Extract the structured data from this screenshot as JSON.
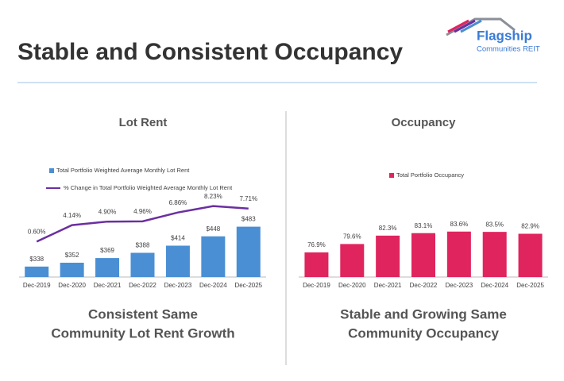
{
  "slide": {
    "title": "Stable and Consistent Occupancy",
    "logo": {
      "name": "Flagship",
      "subtitle": "Communities REIT"
    }
  },
  "chart_data": [
    {
      "type": "combo",
      "title": "Lot Rent",
      "categories": [
        "Dec-2019",
        "Dec-2020",
        "Dec-2021",
        "Dec-2022",
        "Dec-2023",
        "Dec-2024",
        "Dec-2025"
      ],
      "series": [
        {
          "name": "Total Portfolio Weighted Average Monthly Lot Rent",
          "type": "bar",
          "color": "#4a8fd4",
          "values": [
            338,
            352,
            369,
            388,
            414,
            448,
            483
          ],
          "value_labels": [
            "$338",
            "$352",
            "$369",
            "$388",
            "$414",
            "$448",
            "$483"
          ]
        },
        {
          "name": "% Change in Total Portfolio Weighted Average Monthly Lot Rent",
          "type": "line",
          "color": "#6b2fa0",
          "axis": "y2",
          "values": [
            0.6,
            4.14,
            4.9,
            4.96,
            6.86,
            8.23,
            7.71
          ],
          "value_labels": [
            "0.60%",
            "4.14%",
            "4.90%",
            "4.96%",
            "6.86%",
            "8.23%",
            "7.71%"
          ]
        }
      ],
      "ylim": [
        300,
        730
      ],
      "y2lim": [
        -7,
        18.4
      ],
      "caption": [
        "Consistent Same",
        "Community Lot Rent Growth"
      ]
    },
    {
      "type": "bar",
      "title": "Occupancy",
      "categories": [
        "Dec-2019",
        "Dec-2020",
        "Dec-2021",
        "Dec-2022",
        "Dec-2023",
        "Dec-2024",
        "Dec-2025"
      ],
      "series": [
        {
          "name": "Total Portfolio Occupancy",
          "type": "bar",
          "color": "#e0245e",
          "values": [
            76.9,
            79.6,
            82.3,
            83.1,
            83.6,
            83.5,
            82.9
          ],
          "value_labels": [
            "76.9%",
            "79.6%",
            "82.3%",
            "83.1%",
            "83.6%",
            "83.5%",
            "82.9%"
          ]
        }
      ],
      "ylim": [
        69,
        107
      ],
      "caption": [
        "Stable and Growing Same",
        "Community Occupancy"
      ]
    }
  ]
}
